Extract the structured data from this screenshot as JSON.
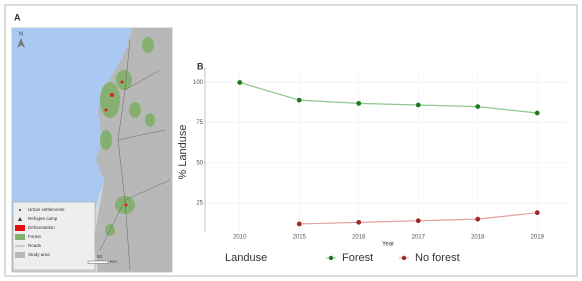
{
  "map": {
    "label": "A",
    "north": "N",
    "legend": [
      "Urban settlements",
      "Refugee camp",
      "Deforestation",
      "Forest",
      "Roads",
      "Study area"
    ],
    "scale": [
      "50",
      "Km"
    ]
  },
  "chart_data": {
    "type": "line",
    "label": "B",
    "x_label": "Year",
    "y_label": "% Landuse",
    "legend_title": "Landuse",
    "categories": [
      "2010",
      "2015",
      "2016",
      "2017",
      "2018",
      "2019"
    ],
    "series": [
      {
        "name": "Forest",
        "color": "#1f7a1f",
        "line_color": "#8cc68c",
        "values": [
          100,
          89,
          87,
          86,
          85,
          81
        ]
      },
      {
        "name": "No forest",
        "color": "#9e2a2a",
        "line_color": "#e2a3a3",
        "values": [
          null,
          12,
          13,
          14,
          15,
          19
        ]
      }
    ],
    "ylim": [
      7,
      109
    ],
    "yticks": [
      25,
      50,
      75,
      100
    ],
    "grid": true,
    "legend_position": "bottom"
  }
}
